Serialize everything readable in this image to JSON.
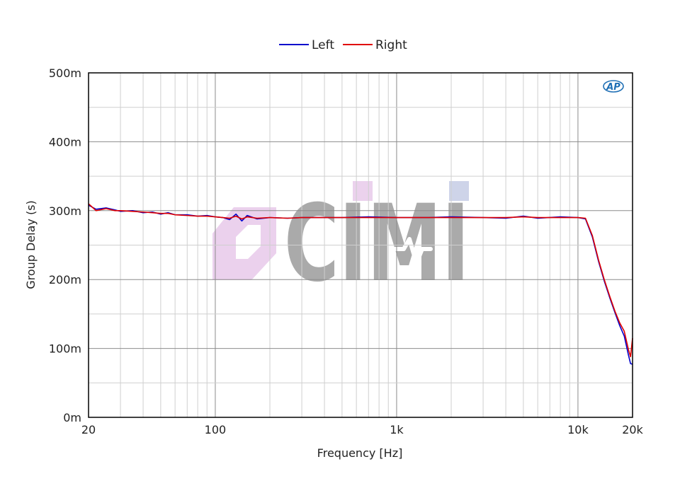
{
  "chart_data": {
    "type": "line",
    "xlabel": "Frequency [Hz]",
    "ylabel": "Group Delay (s)",
    "x_scale": "log",
    "xlim": [
      20,
      20000
    ],
    "ylim": [
      0,
      0.5
    ],
    "x_ticks": [
      {
        "value": 20,
        "label": "20"
      },
      {
        "value": 100,
        "label": "100"
      },
      {
        "value": 1000,
        "label": "1k"
      },
      {
        "value": 10000,
        "label": "10k"
      },
      {
        "value": 20000,
        "label": "20k"
      }
    ],
    "y_ticks": [
      {
        "value": 0,
        "label": "0m"
      },
      {
        "value": 0.1,
        "label": "100m"
      },
      {
        "value": 0.2,
        "label": "200m"
      },
      {
        "value": 0.3,
        "label": "300m"
      },
      {
        "value": 0.4,
        "label": "400m"
      },
      {
        "value": 0.5,
        "label": "500m"
      }
    ],
    "grid": true,
    "legend_position": "top-center",
    "logo_text": "AP",
    "watermark_text": "CIMI",
    "series": [
      {
        "name": "Left",
        "color": "#0000cc",
        "x": [
          20,
          22,
          25,
          28,
          30,
          35,
          40,
          45,
          50,
          55,
          60,
          70,
          80,
          90,
          100,
          110,
          120,
          130,
          140,
          150,
          170,
          200,
          250,
          300,
          400,
          500,
          700,
          1000,
          1500,
          2000,
          3000,
          4000,
          5000,
          6000,
          8000,
          10000,
          11000,
          12000,
          13000,
          14000,
          15000,
          16000,
          17000,
          18000,
          19000,
          19500,
          20000
        ],
        "values": [
          0.308,
          0.302,
          0.304,
          0.301,
          0.299,
          0.3,
          0.297,
          0.298,
          0.295,
          0.297,
          0.294,
          0.294,
          0.292,
          0.293,
          0.291,
          0.29,
          0.287,
          0.295,
          0.285,
          0.293,
          0.288,
          0.29,
          0.289,
          0.29,
          0.29,
          0.29,
          0.291,
          0.29,
          0.29,
          0.291,
          0.29,
          0.289,
          0.292,
          0.289,
          0.291,
          0.29,
          0.288,
          0.262,
          0.226,
          0.197,
          0.173,
          0.152,
          0.133,
          0.118,
          0.09,
          0.078,
          0.077
        ]
      },
      {
        "name": "Right",
        "color": "#e00000",
        "x": [
          20,
          22,
          25,
          28,
          30,
          35,
          40,
          45,
          50,
          55,
          60,
          70,
          80,
          90,
          100,
          110,
          120,
          130,
          140,
          150,
          170,
          200,
          250,
          300,
          400,
          500,
          700,
          1000,
          1500,
          2000,
          3000,
          4000,
          5000,
          6000,
          8000,
          10000,
          11000,
          12000,
          13000,
          14000,
          15000,
          16000,
          17000,
          18000,
          19000,
          19500,
          20000
        ],
        "values": [
          0.31,
          0.3,
          0.303,
          0.3,
          0.3,
          0.299,
          0.298,
          0.297,
          0.296,
          0.296,
          0.294,
          0.293,
          0.292,
          0.292,
          0.291,
          0.29,
          0.289,
          0.292,
          0.288,
          0.291,
          0.289,
          0.29,
          0.289,
          0.29,
          0.29,
          0.29,
          0.29,
          0.29,
          0.29,
          0.29,
          0.29,
          0.29,
          0.291,
          0.29,
          0.29,
          0.29,
          0.289,
          0.264,
          0.228,
          0.199,
          0.175,
          0.154,
          0.137,
          0.125,
          0.098,
          0.088,
          0.115
        ]
      }
    ]
  }
}
